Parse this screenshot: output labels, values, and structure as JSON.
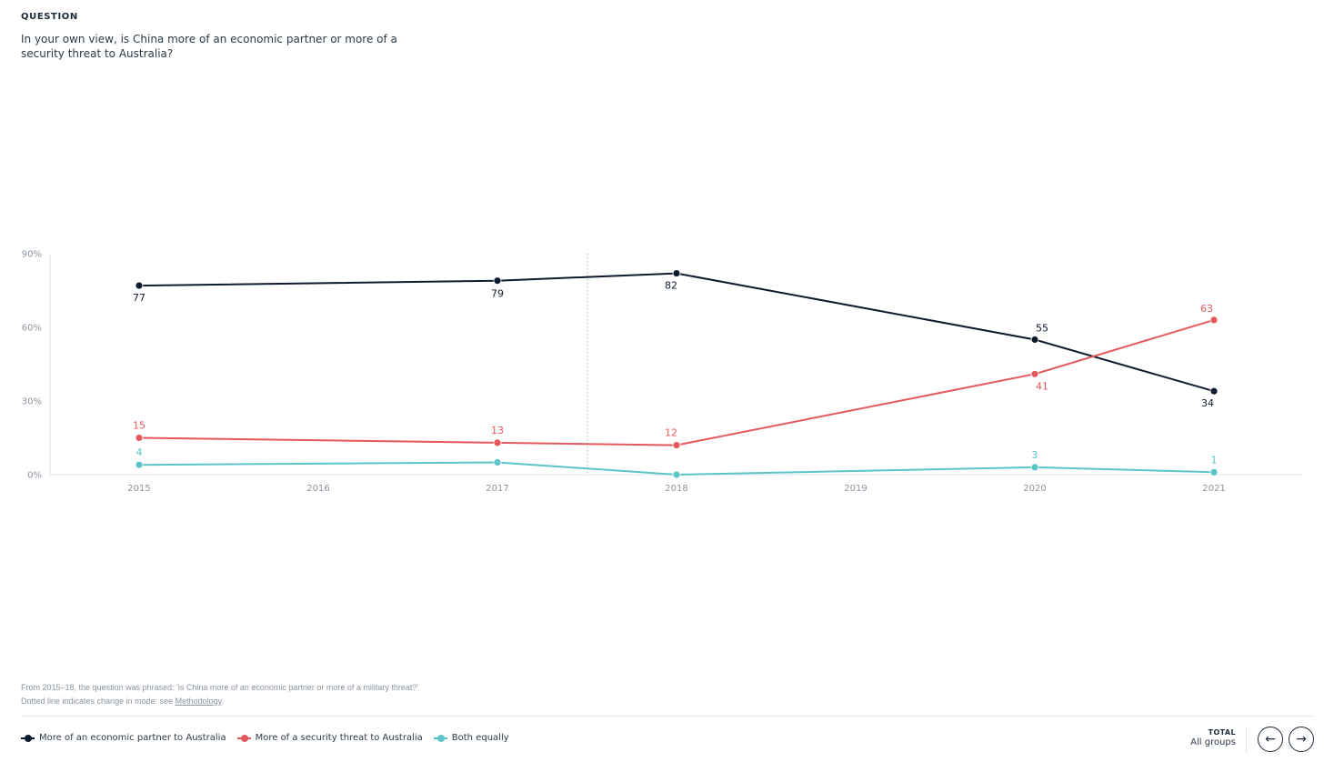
{
  "question": {
    "label": "QUESTION",
    "text": "In your own view, is China more of an economic partner or more of a security threat to Australia?"
  },
  "chart_data": {
    "type": "line",
    "x_ticks": [
      "2015",
      "2016",
      "2017",
      "2018",
      "2019",
      "2020",
      "2021"
    ],
    "x": [
      "2015",
      "2017",
      "2018",
      "2020",
      "2021"
    ],
    "y_ticks": [
      "0%",
      "30%",
      "60%",
      "90%"
    ],
    "ylim": [
      0,
      90
    ],
    "grid": false,
    "mode_change_marker": "between 2017 and 2018 (dotted line)",
    "series": [
      {
        "name": "More of an economic partner to Australia",
        "color": "#0d1b2e",
        "values": [
          77,
          79,
          82,
          55,
          34
        ]
      },
      {
        "name": "More of a security threat to Australia",
        "color": "#e5595c",
        "values": [
          15,
          13,
          12,
          41,
          63
        ]
      },
      {
        "name": "Both equally",
        "color": "#5bc4c8",
        "values": [
          4,
          5,
          0,
          3,
          1
        ]
      }
    ],
    "data_labels": {
      "More of an economic partner to Australia": [
        "77",
        "79",
        "82",
        "55",
        "34"
      ],
      "More of a security threat to Australia": [
        "15",
        "13",
        "12",
        "41",
        "63"
      ],
      "Both equally": [
        "4",
        "",
        "",
        "3",
        "1"
      ]
    }
  },
  "notes": {
    "line1": "From 2015–18, the question was phrased: 'is China more of an economic partner or more of a military threat?'",
    "line2_prefix": "Dotted line indicates change in mode: see ",
    "line2_link": "Methodology",
    "line2_suffix": "."
  },
  "legend": {
    "items": [
      {
        "label": "More of an economic partner to Australia",
        "color": "#0d1b2e"
      },
      {
        "label": "More of a security threat to Australia",
        "color": "#e5595c"
      },
      {
        "label": "Both equally",
        "color": "#5bc4c8"
      }
    ]
  },
  "total": {
    "label": "TOTAL",
    "value": "All groups"
  },
  "nav": {
    "prev_icon": "arrow-left-icon",
    "next_icon": "arrow-right-icon",
    "prev_glyph": "←",
    "next_glyph": "→"
  }
}
